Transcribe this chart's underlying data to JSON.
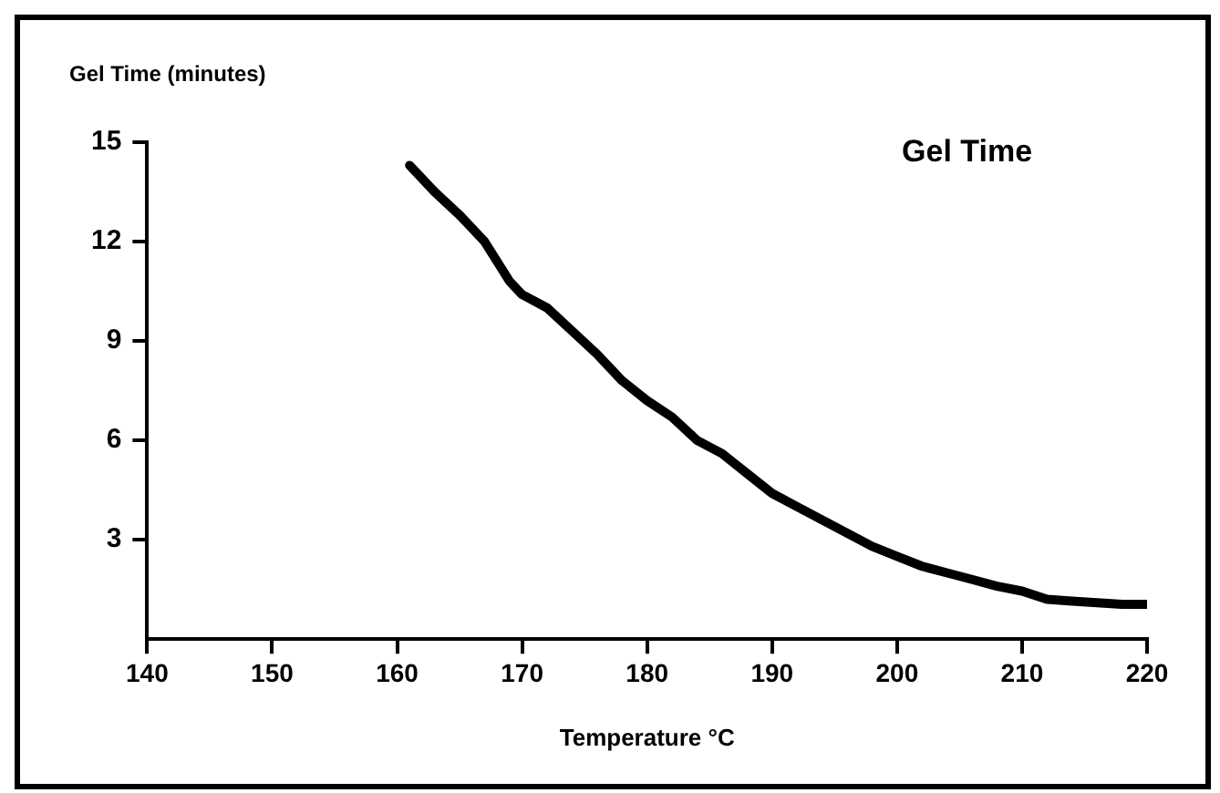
{
  "chart_data": {
    "type": "line",
    "title": "Gel Time",
    "xlabel": "Temperature °C",
    "ylabel": "Gel Time (minutes)",
    "x": [
      161,
      163,
      165,
      167,
      169,
      170,
      172,
      174,
      176,
      178,
      180,
      182,
      184,
      186,
      188,
      190,
      192,
      194,
      196,
      198,
      200,
      202,
      204,
      206,
      208,
      210,
      212,
      214,
      216,
      218,
      220
    ],
    "series": [
      {
        "color": "#000000",
        "values": [
          14.3,
          13.5,
          12.8,
          12.0,
          10.8,
          10.4,
          10.0,
          9.3,
          8.6,
          7.8,
          7.2,
          6.7,
          6.0,
          5.6,
          5.0,
          4.4,
          4.0,
          3.6,
          3.2,
          2.8,
          2.5,
          2.2,
          2.0,
          1.8,
          1.6,
          1.45,
          1.2,
          1.15,
          1.1,
          1.05,
          1.05
        ]
      }
    ],
    "xlim": [
      140,
      220
    ],
    "xticks": [
      140,
      150,
      160,
      170,
      180,
      190,
      200,
      210,
      220
    ],
    "ylim": [
      0,
      15
    ],
    "yticks": [
      3,
      6,
      9,
      12,
      15
    ],
    "grid": false,
    "legend": false,
    "marker": "none",
    "line_style": "solid"
  }
}
